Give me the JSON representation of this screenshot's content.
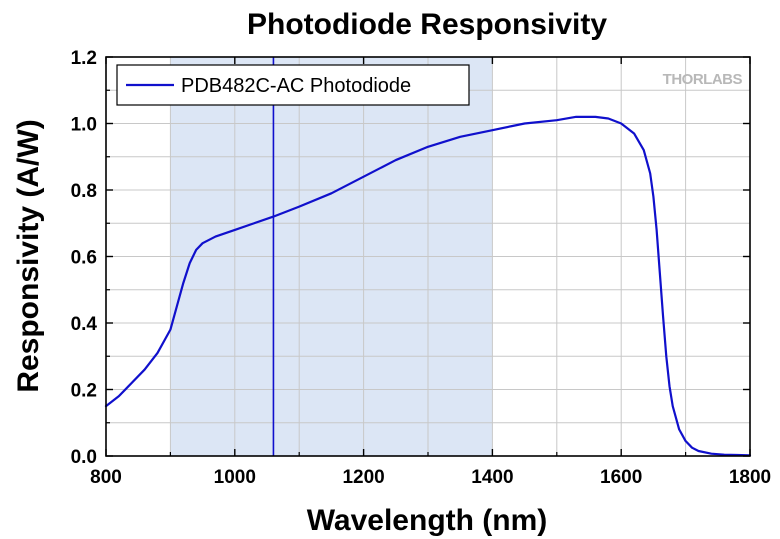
{
  "chart_data": {
    "type": "line",
    "title": "Photodiode Responsivity",
    "xlabel": "Wavelength (nm)",
    "ylabel": "Responsivity (A/W)",
    "xlim": [
      800,
      1800
    ],
    "ylim": [
      0.0,
      1.2
    ],
    "x_ticks": [
      "800",
      "1000",
      "1200",
      "1400",
      "1600",
      "1800"
    ],
    "y_ticks": [
      "0.0",
      "0.2",
      "0.4",
      "0.6",
      "0.8",
      "1.0",
      "1.2"
    ],
    "grid": true,
    "legend_position": "top-left",
    "shaded_band": [
      900,
      1400
    ],
    "vertical_marker": 1060,
    "series": [
      {
        "name": "PDB482C-AC Photodiode",
        "color": "#1010cc",
        "x": [
          800,
          820,
          840,
          860,
          880,
          900,
          910,
          920,
          930,
          940,
          950,
          970,
          1000,
          1030,
          1060,
          1100,
          1150,
          1200,
          1250,
          1300,
          1350,
          1400,
          1450,
          1500,
          1530,
          1560,
          1580,
          1600,
          1620,
          1635,
          1645,
          1650,
          1655,
          1660,
          1665,
          1670,
          1675,
          1680,
          1690,
          1700,
          1710,
          1720,
          1740,
          1760,
          1780,
          1800
        ],
        "values": [
          0.15,
          0.18,
          0.22,
          0.26,
          0.31,
          0.38,
          0.45,
          0.52,
          0.58,
          0.62,
          0.64,
          0.66,
          0.68,
          0.7,
          0.72,
          0.75,
          0.79,
          0.84,
          0.89,
          0.93,
          0.96,
          0.98,
          1.0,
          1.01,
          1.02,
          1.02,
          1.015,
          1.0,
          0.97,
          0.92,
          0.85,
          0.78,
          0.68,
          0.55,
          0.42,
          0.3,
          0.21,
          0.15,
          0.08,
          0.045,
          0.025,
          0.015,
          0.007,
          0.004,
          0.003,
          0.002
        ]
      }
    ]
  },
  "legend": {
    "entries": [
      "PDB482C-AC Photodiode"
    ]
  },
  "watermark": {
    "text": "THORLABS"
  },
  "colors": {
    "series_line": "#1010cc",
    "shaded_band": "#dce6f5",
    "marker_line": "#1010cc",
    "grid": "#c8c8c8"
  }
}
